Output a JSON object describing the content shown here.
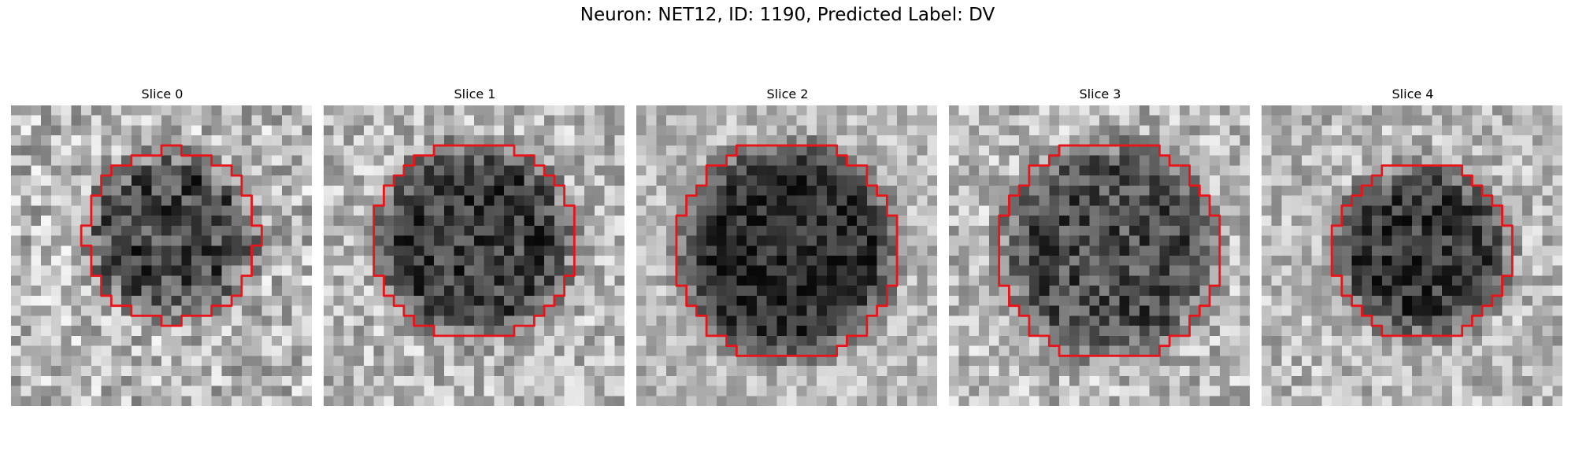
{
  "figure": {
    "title": "Neuron: NET12, ID: 1190, Predicted Label: DV"
  },
  "contour_color": "#e8141a",
  "colormap": "gray",
  "grid_size": 30,
  "panels": [
    {
      "title": "Slice 0",
      "seed": 11,
      "center": [
        16.0,
        13.0
      ],
      "radius": 8.6,
      "dark": 0.28,
      "noise": 0.32
    },
    {
      "title": "Slice 1",
      "seed": 23,
      "center": [
        15.0,
        13.5
      ],
      "radius": 10.0,
      "dark": 0.25,
      "noise": 0.28
    },
    {
      "title": "Slice 2",
      "seed": 37,
      "center": [
        15.0,
        14.5
      ],
      "radius": 11.0,
      "dark": 0.18,
      "noise": 0.22
    },
    {
      "title": "Slice 3",
      "seed": 41,
      "center": [
        16.0,
        14.5
      ],
      "radius": 11.0,
      "dark": 0.3,
      "noise": 0.28
    },
    {
      "title": "Slice 4",
      "seed": 53,
      "center": [
        16.0,
        14.5
      ],
      "radius": 8.8,
      "dark": 0.22,
      "noise": 0.26
    }
  ]
}
